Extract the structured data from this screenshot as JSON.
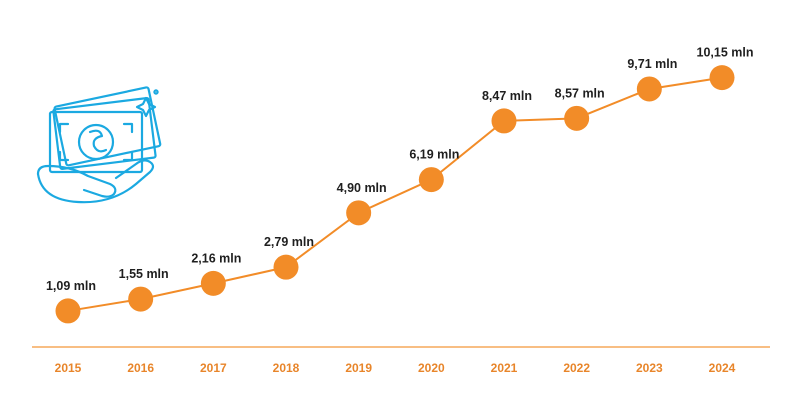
{
  "chart_data": {
    "type": "line",
    "title": "",
    "xlabel": "",
    "ylabel": "",
    "categories": [
      "2015",
      "2016",
      "2017",
      "2018",
      "2019",
      "2020",
      "2021",
      "2022",
      "2023",
      "2024"
    ],
    "values": [
      1.09,
      1.55,
      2.16,
      2.79,
      4.9,
      6.19,
      8.47,
      8.57,
      9.71,
      10.15
    ],
    "data_labels": [
      "1,09 mln",
      "1,55 mln",
      "2,16 mln",
      "2,79 mln",
      "4,90 mln",
      "6,19 mln",
      "8,47 mln",
      "8,57 mln",
      "9,71 mln",
      "10,15 mln"
    ],
    "ylim": [
      0,
      11
    ],
    "grid": false,
    "legend": "none"
  },
  "colors": {
    "line": "#F28C28",
    "marker": "#F28C28",
    "axis": "#F5A85A",
    "tick_text": "#E8852A",
    "label_text": "#1f1f1f",
    "icon": "#1BA9E1"
  },
  "icon": {
    "name": "money-in-hand-icon"
  }
}
